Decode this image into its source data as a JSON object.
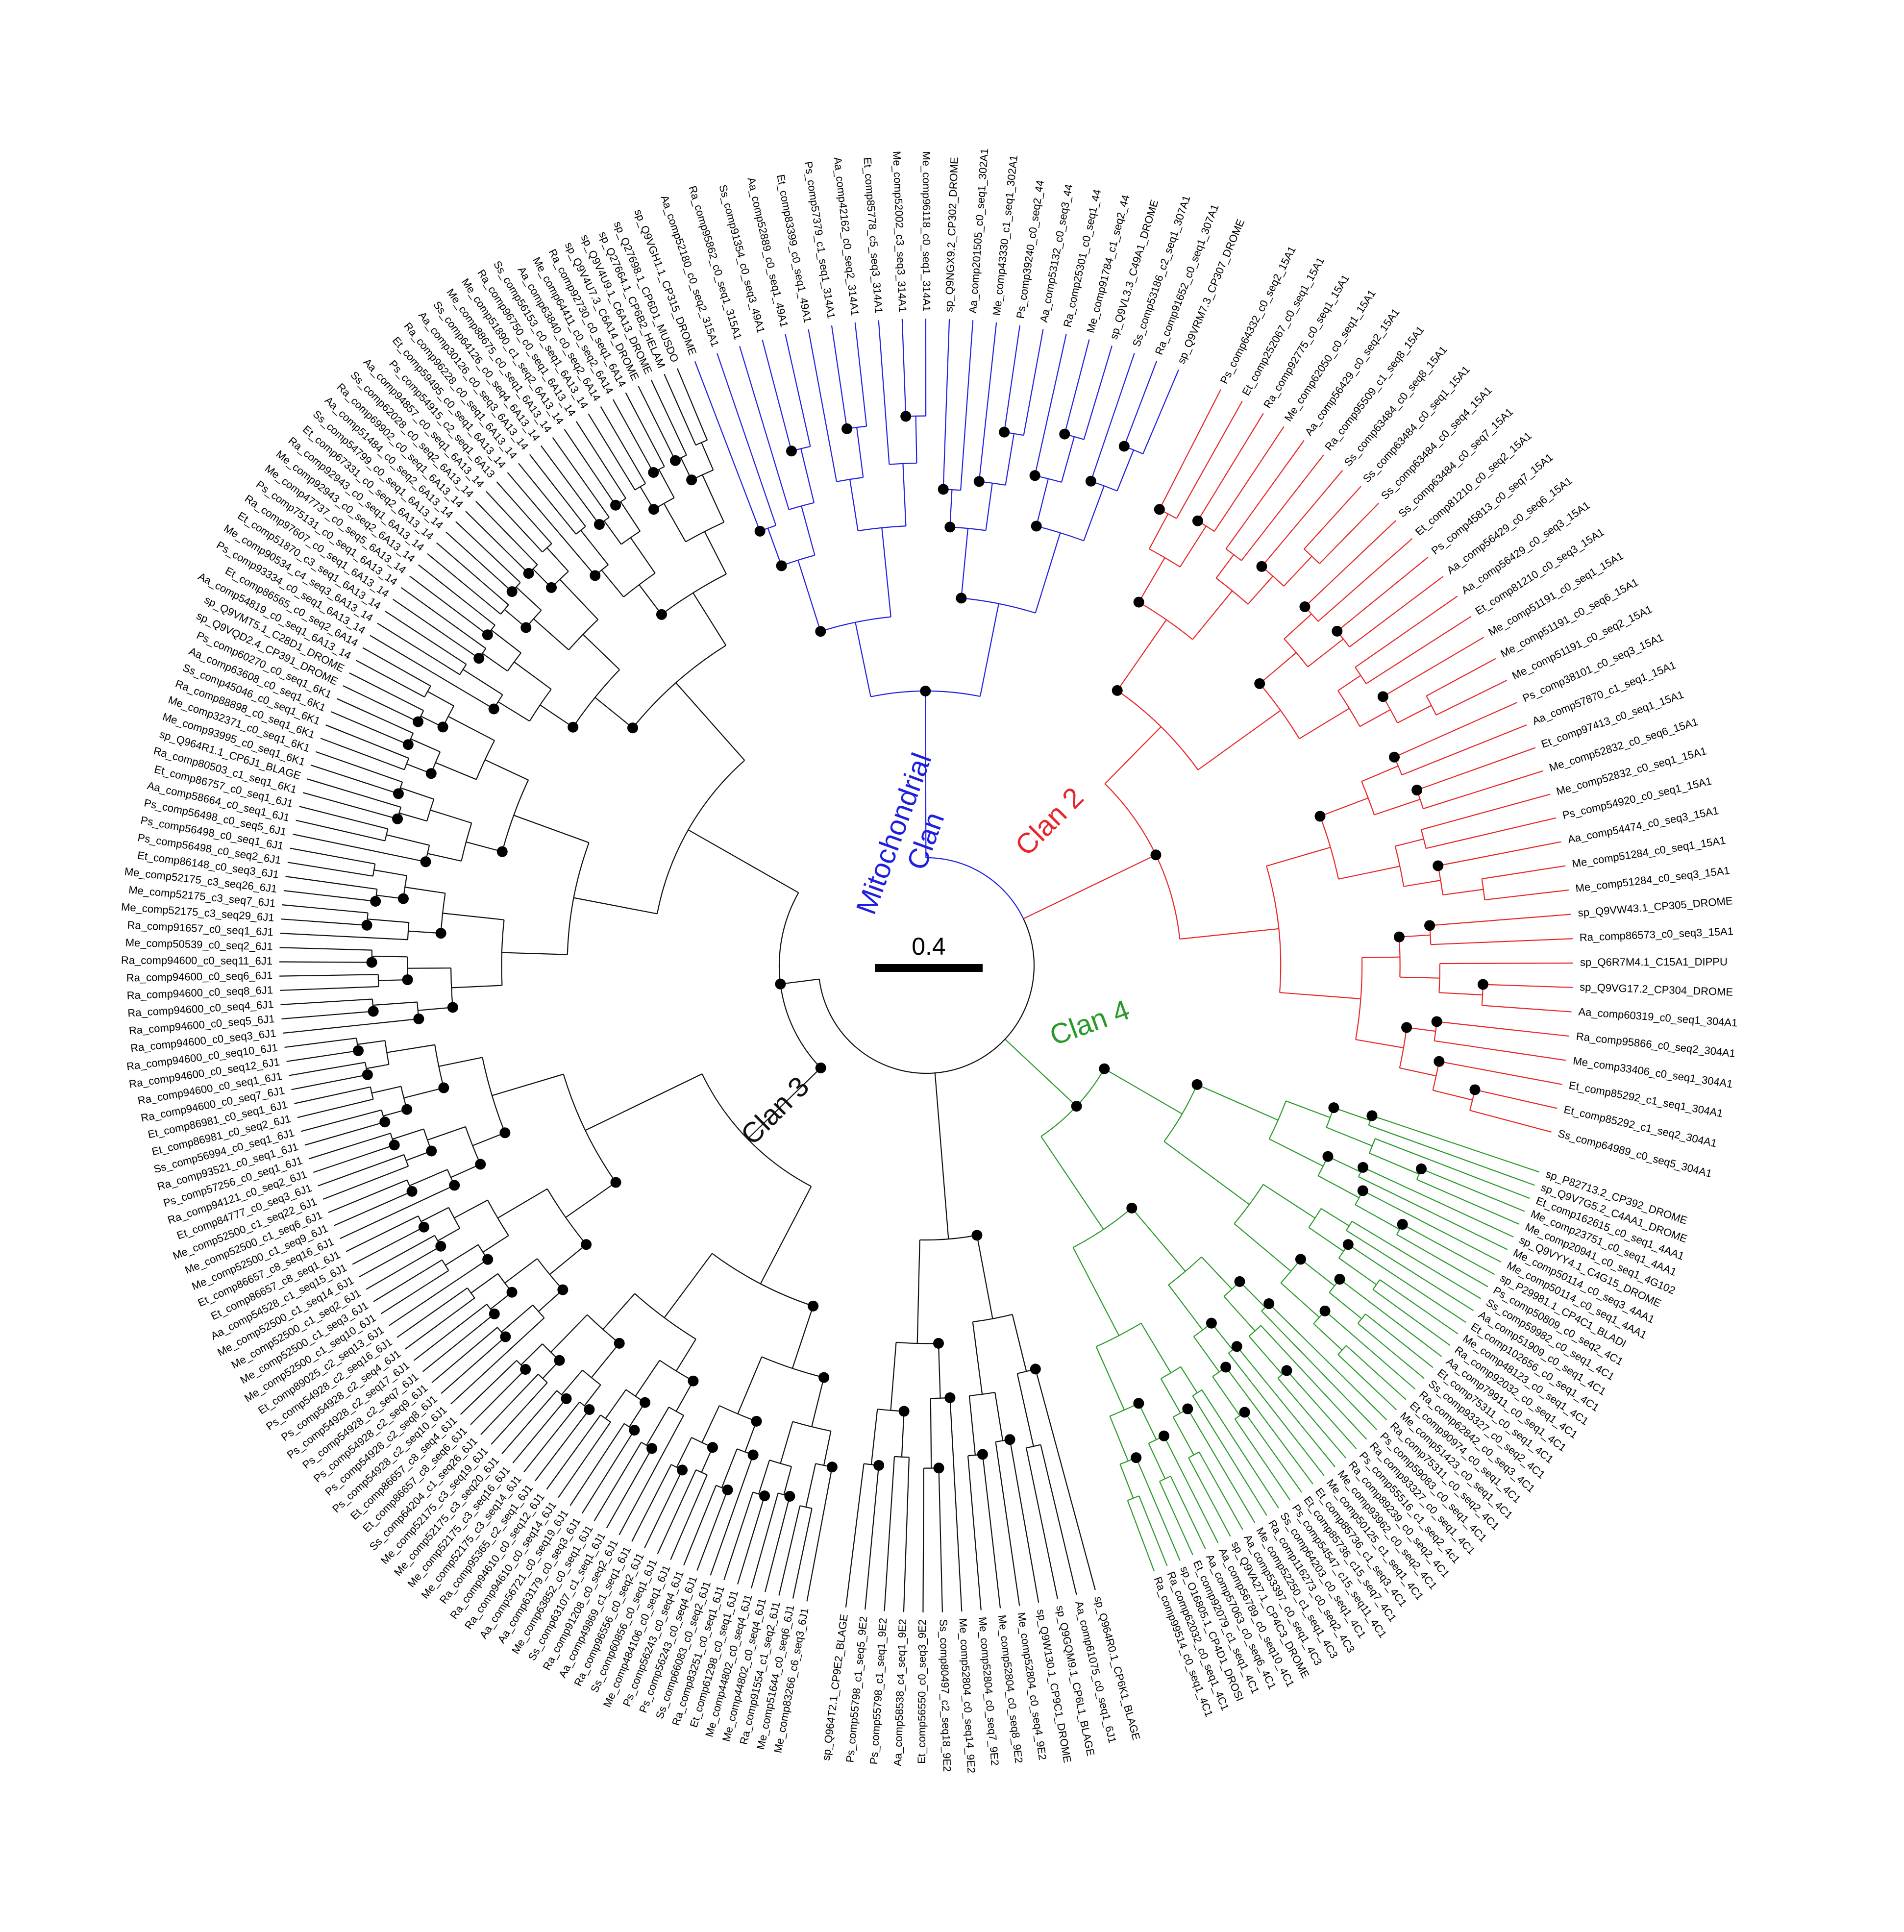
{
  "scale": {
    "label": "0.4"
  },
  "colors": {
    "mito": "#1f1fe0",
    "clan2": "#e8262a",
    "clan3": "#111111",
    "clan4": "#2a9a2a"
  },
  "clans": [
    {
      "key": "mito",
      "label": "Mitochondrial Clan",
      "lines": [
        "Mitochondrial",
        "Clan"
      ]
    },
    {
      "key": "clan2",
      "label": "Clan 2"
    },
    {
      "key": "clan3",
      "label": "Clan 3"
    },
    {
      "key": "clan4",
      "label": "Clan 4"
    }
  ],
  "leaves": {
    "mito": [
      "sp_Q9VGH1.1_CP315_DROME",
      "Aa_comp52180_c0_seq2_315A1",
      "Ra_comp95862_c0_seq1_315A1",
      "Ss_comp91354_c0_seq3_49A1",
      "Aa_comp52889_c0_seq1_49A1",
      "Et_comp83399_c0_seq1_49A1",
      "Ps_comp57379_c1_seq1_314A1",
      "Aa_comp42162_c0_seq2_314A1",
      "Et_comp85778_c5_seq3_314A1",
      "Me_comp52002_c3_seq3_314A1",
      "Me_comp96118_c0_seq1_314A1",
      "sp_Q9NGX9.2_CP302_DROME",
      "Aa_comp201505_c0_seq1_302A1",
      "Me_comp43330_c1_seq1_302A1",
      "Ps_comp39240_c0_seq2_44",
      "Aa_comp53132_c0_seq3_44",
      "Ra_comp25301_c0_seq1_44",
      "Me_comp91784_c1_seq2_44",
      "sp_Q9VL3.3_C49A1_DROME",
      "Ss_comp53186_c2_seq1_307A1",
      "Ra_comp91652_c0_seq1_307A1",
      "sp_Q9VRM7.3_CP307_DROME"
    ],
    "clan2": [
      "Ps_comp64332_c0_seq2_15A1",
      "Et_comp252067_c0_seq1_15A1",
      "Ra_comp92775_c0_seq1_15A1",
      "Me_comp62050_c0_seq1_15A1",
      "Aa_comp56429_c0_seq2_15A1",
      "Ra_comp95509_c1_seq8_15A1",
      "Ss_comp63484_c0_seq8_15A1",
      "Ss_comp63484_c0_seq1_15A1",
      "Ss_comp63484_c0_seq4_15A1",
      "Ss_comp63484_c0_seq7_15A1",
      "Et_comp81210_c0_seq2_15A1",
      "Ps_comp45813_c0_seq7_15A1",
      "Aa_comp56429_c0_seq6_15A1",
      "Aa_comp56429_c0_seq3_15A1",
      "Et_comp81210_c0_seq3_15A1",
      "Me_comp51191_c0_seq1_15A1",
      "Me_comp51191_c0_seq6_15A1",
      "Me_comp51191_c0_seq2_15A1",
      "Ps_comp38101_c0_seq3_15A1",
      "Aa_comp57870_c1_seq1_15A1",
      "Et_comp97413_c0_seq1_15A1",
      "Me_comp52832_c0_seq6_15A1",
      "Me_comp52832_c0_seq1_15A1",
      "Ps_comp54920_c0_seq1_15A1",
      "Aa_comp54474_c0_seq3_15A1",
      "Me_comp51284_c0_seq1_15A1",
      "Me_comp51284_c0_seq3_15A1",
      "sp_Q9VW43.1_CP305_DROME",
      "Ra_comp86573_c0_seq3_15A1",
      "sp_Q6R7M4.1_C15A1_DIPPU",
      "sp_Q9VG17.2_CP304_DROME",
      "Aa_comp60319_c0_seq1_304A1",
      "Ra_comp95866_c0_seq2_304A1",
      "Me_comp33406_c0_seq1_304A1",
      "Et_comp85292_c1_seq1_304A1",
      "Et_comp85292_c1_seq2_304A1",
      "Ss_comp64989_c0_seq5_304A1"
    ],
    "clan4": [
      "sp_P82713.2_CP392_DROME",
      "sp_Q9V7G5.2_C4AA1_DROME",
      "Et_comp162615_c0_seq1_4AA1",
      "Me_comp23751_c0_seq1_4AA1",
      "Me_comp20941_c0_seq1_4G102",
      "sp_Q9VYY4.1_C4G15_DROME",
      "Me_comp50114_c0_seq3_4AA1",
      "Me_comp50114_c0_seq1_4AA1",
      "sp_P29981.1_CP4C1_BLADI",
      "Ps_comp50809_c0_seq2_4C1",
      "Ss_comp59982_c0_seq1_4C1",
      "Aa_comp51909_c0_seq1_4C1",
      "Et_comp102656_c0_seq1_4C1",
      "Me_comp48123_c0_seq1_4C1",
      "Ra_comp92032_c0_seq1_4C1",
      "Aa_comp79911_c0_seq1_4C1",
      "Et_comp75311_c0_seq1_4C1",
      "Ss_comp93327_c0_seq2_4C1",
      "Ra_comp62842_c0_seq3_4C1",
      "Et_comp90974_c0_seq1_4C1",
      "Me_comp51423_c0_seq1_4C1",
      "Ra_comp75311_c0_seq2_4C1",
      "Ps_comp59083_c0_seq1_4C1",
      "Ra_comp93327_c0_seq1_4C1",
      "Ps_comp55516_c1_seq2_4c1",
      "Ra_comp89239_c0_seq2_4C1",
      "Me_comp93962_c0_seq2_4C1",
      "Me_comp50125_c1_seq1_4C1",
      "Et_comp85736_c1_seq3_4C1",
      "Et_comp85736_c15_seq7_4C1",
      "Ps_comp54547_c15_seq11_4C1",
      "Ss_comp64203_c0_seq1_4C1",
      "Ra_comp116273_c0_seq2_4C3",
      "Me_comp52250_c1_seq1_4C3",
      "Aa_comp53397_c0_seq1_4C3",
      "sp_Q9VA27.1_CP4C3_DROME",
      "Aa_comp56789_c0_seq10_4C1",
      "Aa_comp57063_c0_seq6_4C1",
      "Et_comp92079_c1_seq1_4C1",
      "sp_O16805.1_CP4D1_DROSI",
      "Ra_comp62032_c0_seq1_4C1",
      "Ra_comp99514_c0_seq1_4C1"
    ],
    "clan3": [
      "Me_comp83266_c6_seq3_6J1",
      "Me_comp51644_c0_seq6_6J1",
      "Ra_comp91554_c1_seq2_6J1",
      "Me_comp44802_c0_seq4_6J1",
      "Me_comp44802_c0_seq4_6J1",
      "Et_comp61298_c0_seq1_6J1",
      "Ra_comp83251_c0_seq1_6J1",
      "Ss_comp66083_c0_seq2_6J1",
      "Ps_comp56243_c0_seq4_6J1",
      "Ps_comp56243_c0_seq4_6J1",
      "Me_comp484106_c0_seq1_6J1",
      "Ss_comp60856_c0_seq1_6J1",
      "Ra_comp96556_c0_seq2_6J1",
      "Aa_comp49869_c1_seq1_6J1",
      "Ra_comp91208_c0_seq2_6J1",
      "Ss_comp63107_c1_seq1_6J1",
      "Me_comp63852_c0_seq1_6J1",
      "Aa_comp63179_c0_seq3_6J1",
      "Aa_comp56721_c0_seq19_6J1",
      "Ra_comp94610_c0_seq14_6J1",
      "Ra_comp94610_c0_seq12_6J1",
      "Ra_comp95365_c2_seq1_6J1",
      "Me_comp52175_c3_seq14_6J1",
      "Me_comp52175_c3_seq16_6J1",
      "Me_comp52175_c3_seq20_6J1",
      "Me_comp52175_c3_seq19_6J1",
      "Ss_comp64204_c1_seq26_6J1",
      "Et_comp86657_c8_seq6_6J1",
      "Et_comp86657_c8_seq4_6J1",
      "Ps_comp54928_c2_seq10_6J1",
      "Ps_comp54928_c2_seq8_6J1",
      "Ps_comp54928_c2_seq9_6J1",
      "Ps_comp54928_c2_seq7_6J1",
      "Ps_comp54928_c2_seq17_6J1",
      "Ps_comp54928_c2_seq4_6J1",
      "Ps_comp54928_c2_seq16_6J1",
      "Et_comp89025_c2_seq13_6J1",
      "Me_comp52500_c1_seq10_6J1",
      "Me_comp52500_c1_seq3_6J1",
      "Me_comp52500_c1_seq2_6J1",
      "Me_comp52500_c1_seq14_6J1",
      "Aa_comp54528_c1_seq15_6J1",
      "Et_comp86657_c8_seq1_6J1",
      "Et_comp86657_c8_seq16_6J1",
      "Me_comp52500_c1_seq9_6J1",
      "Me_comp52500_c1_seq6_6J1",
      "Me_comp52500_c1_seq22_6J1",
      "Et_comp84777_c0_seq3_6J1",
      "Ra_comp94121_c0_seq2_6J1",
      "Ps_comp57256_c0_seq1_6J1",
      "Ra_comp93521_c0_seq1_6J1",
      "Ss_comp56994_c0_seq1_6J1",
      "Et_comp86981_c0_seq2_6J1",
      "Et_comp86981_c0_seq1_6J1",
      "Ra_comp94600_c0_seq7_6J1",
      "Ra_comp94600_c0_seq1_6J1",
      "Ra_comp94600_c0_seq12_6J1",
      "Ra_comp94600_c0_seq10_6J1",
      "Ra_comp94600_c0_seq3_6J1",
      "Ra_comp94600_c0_seq5_6J1",
      "Ra_comp94600_c0_seq4_6J1",
      "Ra_comp94600_c0_seq8_6J1",
      "Ra_comp94600_c0_seq6_6J1",
      "Ra_comp94600_c0_seq11_6J1",
      "Me_comp50539_c0_seq2_6J1",
      "Ra_comp91657_c0_seq1_6J1",
      "Me_comp52175_c3_seq29_6J1",
      "Me_comp52175_c3_seq7_6J1",
      "Me_comp52175_c3_seq26_6J1",
      "Et_comp86148_c0_seq3_6J1",
      "Ps_comp56498_c0_seq2_6J1",
      "Ps_comp56498_c0_seq1_6J1",
      "Ps_comp56498_c0_seq5_6J1",
      "Aa_comp58664_c0_seq1_6J1",
      "Et_comp86757_c0_seq1_6J1",
      "Ra_comp80503_c1_seq1_6K1",
      "sp_Q964R1.1_CP6J1_BLAGE",
      "Me_comp93995_c0_seq1_6K1",
      "Me_comp32371_c0_seq1_6K1",
      "Ra_comp88898_c0_seq1_6K1",
      "Ss_comp45046_c0_seq1_6K1",
      "Aa_comp63608_c0_seq1_6K1",
      "Ps_comp60270_c0_seq1_6K1",
      "sp_Q9VQD2.4_CP391_DROME",
      "sp_Q9VMT5.1_C28D1_DROME",
      "Aa_comp54819_c0_seq1_6A13_14",
      "Et_comp86565_c0_seq2_6A14",
      "Ps_comp93334_c0_seq1_6A13_14",
      "Me_comp90534_c4_seq3_6A13_14",
      "Et_comp51870_c3_seq1_6A13_14",
      "Ra_comp97607_c0_seq1_6A13_14",
      "Ps_comp75131_c0_seq1_6A13_14",
      "Me_comp47737_c0_seq5_6A13_14",
      "Me_comp92943_c0_seq2_6A13_14",
      "Ra_comp92943_c0_seq1_6A13_14",
      "Et_comp67331_c0_seq2_6A13_14",
      "Ss_comp54799_c0_seq1_6A13_14",
      "Aa_comp51484_c0_seq2_6A13_14",
      "Ra_comp69902_c0_seq1_6A13_14",
      "Ss_comp62028_c0_seq2_6A13_14",
      "Aa_comp94857_c0_seq1_6A13_14",
      "Ps_comp54915_c2_seq1_6A13",
      "Et_comp59495_c0_seq1_6A13_14",
      "Ra_comp96228_c0_seq1_6A13_14",
      "Aa_comp30126_c0_seq3_6A13_14",
      "Ss_comp64126_c0_seq4_6A13_14",
      "Me_comp88675_c0_seq1_6A13_14",
      "Me_comp51890_c1_seq2_6A13_14",
      "Ra_comp96750_c0_seq1_6A13_14",
      "Ss_comp56153_c0_seq1_6A13_14",
      "Aa_comp63840_c0_seq2_6A14",
      "Me_comp64411_c0_seq2_6A14",
      "Ra_comp92730_c0_seq1_6A14",
      "sp_Q9V4U7.3_C6A14_DROME",
      "sp_Q9V4U9.1_C6A13_DROME",
      "sp_Q27664.1_CP6B2_HELAM",
      "sp_Q27698.1_CP6D1_MUSDO"
    ],
    "clan3_bottom": [
      "sp_Q964R0.1_CP6K1_BLAGE",
      "Aa_comp61075_c0_seq1_6J1",
      "sp_Q9GQM9.1_CP6L1_BLAGE",
      "sp_Q9W130.1_CP9C1_DROME",
      "Me_comp52804_c0_seq4_9E2",
      "Me_comp52804_c0_seq8_9E2",
      "Me_comp52804_c0_seq7_9E2",
      "Me_comp52804_c0_seq14_9E2",
      "Ss_comp80497_c2_seq18_9E2",
      "Et_comp56550_c0_seq3_9E2",
      "Aa_comp58538_c4_seq1_9E2",
      "Ps_comp55798_c1_seq1_9E2",
      "Ps_comp55798_c1_seq5_9E2",
      "sp_Q964T2.1_CP9E2_BLAGE"
    ]
  }
}
